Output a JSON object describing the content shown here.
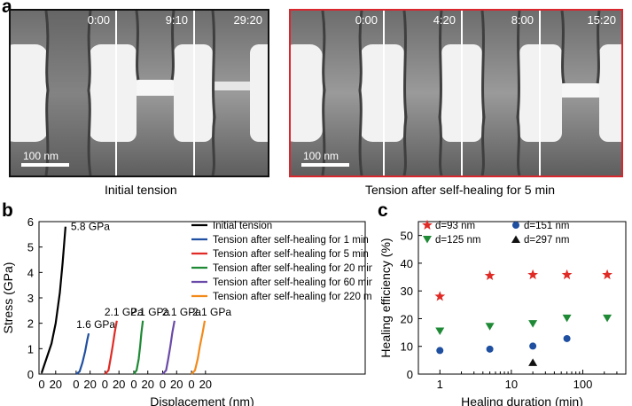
{
  "panels": {
    "a": "a",
    "b": "b",
    "c": "c"
  },
  "panel_a": {
    "initial": {
      "caption": "Initial tension",
      "timestamps": [
        "0:00",
        "9:10",
        "29:20"
      ],
      "scale_label": "100 nm"
    },
    "healed": {
      "caption": "Tension after self-healing for 5 min",
      "timestamps": [
        "0:00",
        "4:20",
        "8:00",
        "15:20"
      ],
      "scale_label": "100 nm"
    }
  },
  "chart_data": [
    {
      "type": "line",
      "panel": "b",
      "xlabel": "Displacement (nm)",
      "ylabel": "Stress (GPa)",
      "ylim": [
        0,
        6
      ],
      "yticks": [
        0,
        1,
        2,
        3,
        4,
        5,
        6
      ],
      "xtick_labels": [
        "0",
        "20",
        "0",
        "20",
        "0",
        "20",
        "0",
        "20",
        "0",
        "20",
        "0",
        "20"
      ],
      "series": [
        {
          "name": "Initial tension",
          "color": "#000000",
          "offset": 0,
          "points": [
            [
              0,
              0.05
            ],
            [
              3,
              0.3
            ],
            [
              8,
              0.7
            ],
            [
              14,
              1.2
            ],
            [
              20,
              2.0
            ],
            [
              26,
              3.2
            ],
            [
              30,
              4.4
            ],
            [
              34,
              5.8
            ]
          ],
          "peak_label": "5.8 GPa"
        },
        {
          "name": "Tension after self-healing for 1 min",
          "color": "#1f4fa0",
          "offset": 1,
          "points": [
            [
              0,
              0
            ],
            [
              5,
              0.1
            ],
            [
              9,
              0.45
            ],
            [
              13,
              0.9
            ],
            [
              16,
              1.35
            ],
            [
              18,
              1.6
            ]
          ],
          "peak_label": "1.6 GPa"
        },
        {
          "name": "Tension after self-healing for 5 min",
          "color": "#e02a25",
          "offset": 2,
          "points": [
            [
              0,
              0
            ],
            [
              5,
              0.15
            ],
            [
              8,
              0.6
            ],
            [
              11,
              1.1
            ],
            [
              14,
              1.65
            ],
            [
              17,
              2.1
            ]
          ],
          "peak_label": "2.1 GPa"
        },
        {
          "name": "Tension after self-healing for 20 min",
          "color": "#1e8a35",
          "offset": 3,
          "points": [
            [
              0,
              0
            ],
            [
              4,
              0.15
            ],
            [
              7,
              0.6
            ],
            [
              9,
              1.1
            ],
            [
              11,
              1.65
            ],
            [
              13,
              2.1
            ]
          ],
          "peak_label": "2.1 GPa"
        },
        {
          "name": "Tension after self-healing for 60 min",
          "color": "#6a4aa8",
          "offset": 4,
          "points": [
            [
              0,
              0
            ],
            [
              5,
              0.15
            ],
            [
              8,
              0.6
            ],
            [
              11,
              1.1
            ],
            [
              14,
              1.65
            ],
            [
              17,
              2.1
            ]
          ],
          "peak_label": "2.1 GPa"
        },
        {
          "name": "Tension after self-healing for 220 min",
          "color": "#f28a1a",
          "offset": 5,
          "points": [
            [
              0,
              0
            ],
            [
              5,
              0.15
            ],
            [
              9,
              0.6
            ],
            [
              12,
              1.1
            ],
            [
              16,
              1.65
            ],
            [
              19,
              2.1
            ]
          ],
          "peak_label": "2.1 GPa"
        }
      ]
    },
    {
      "type": "scatter",
      "panel": "c",
      "xlabel": "Healing duration (min)",
      "ylabel": "Healing efficiency (%)",
      "xscale": "log",
      "xlim": [
        0.5,
        400
      ],
      "ylim": [
        0,
        55
      ],
      "yticks": [
        0,
        10,
        20,
        30,
        40,
        50
      ],
      "xticks": [
        1,
        10,
        100
      ],
      "xtick_labels": [
        "1",
        "10",
        "100"
      ],
      "series": [
        {
          "name": "d=93 nm",
          "marker": "star",
          "color": "#e02a25",
          "x": [
            1,
            5,
            20,
            60,
            220
          ],
          "y": [
            28,
            35.5,
            35.8,
            35.8,
            35.8
          ]
        },
        {
          "name": "d=125 nm",
          "marker": "triangle-down",
          "color": "#1e8a35",
          "x": [
            1,
            5,
            20,
            60,
            220
          ],
          "y": [
            15.5,
            17.2,
            18.2,
            20.2,
            20.2
          ]
        },
        {
          "name": "d=151 nm",
          "marker": "circle",
          "color": "#1f4fa0",
          "x": [
            1,
            5,
            20,
            60
          ],
          "y": [
            8.5,
            9,
            10.1,
            12.8
          ]
        },
        {
          "name": "d=297 nm",
          "marker": "triangle-up",
          "color": "#111111",
          "x": [
            20
          ],
          "y": [
            4.2
          ]
        }
      ]
    }
  ]
}
